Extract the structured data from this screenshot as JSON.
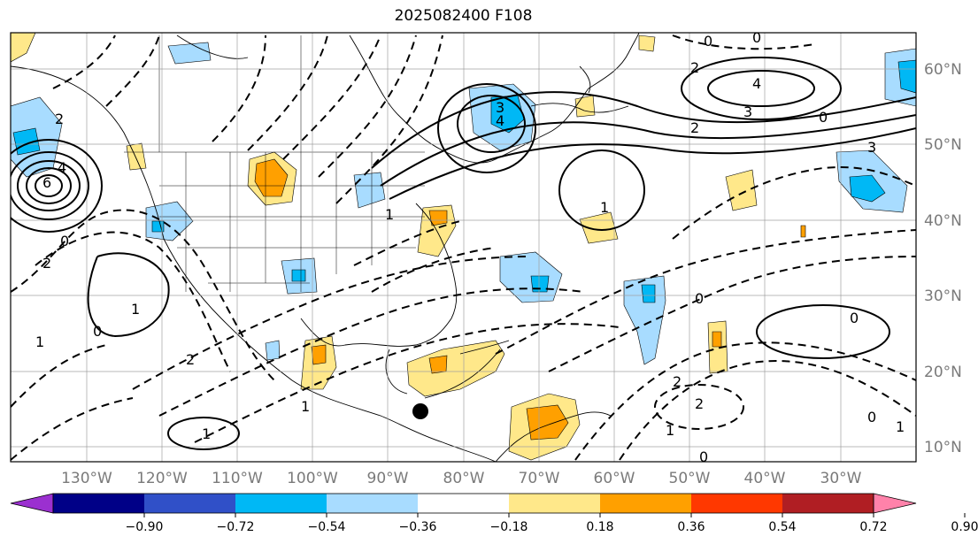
{
  "title": "2025082400 F108",
  "lat_labels": [
    "60°N",
    "50°N",
    "40°N",
    "30°N",
    "20°N",
    "10°N"
  ],
  "lon_labels": [
    "130°W",
    "120°W",
    "110°W",
    "100°W",
    "90°W",
    "80°W",
    "70°W",
    "60°W",
    "50°W",
    "40°W",
    "30°W"
  ],
  "colorbar": {
    "colors": [
      "#9b30d0",
      "#000087",
      "#3050c8",
      "#00b8f5",
      "#a8dcff",
      "#ffffff",
      "#ffe88a",
      "#ffa000",
      "#ff3800",
      "#b01e23",
      "#ff82aa"
    ],
    "tick_labels": [
      "−0.90",
      "−0.72",
      "−0.54",
      "−0.36",
      "−0.18",
      "0.18",
      "0.36",
      "0.54",
      "0.72",
      "0.90"
    ]
  },
  "contour_labels": [
    "3",
    "4",
    "2",
    "0",
    "4",
    "3",
    "0",
    "2",
    "3",
    "0",
    "4",
    "6",
    "2",
    "0",
    "1",
    "2",
    "1",
    "0",
    "1",
    "2",
    "1",
    "1",
    "0",
    "2",
    "0",
    "1",
    "0",
    "1",
    "2",
    "1",
    "0"
  ]
}
